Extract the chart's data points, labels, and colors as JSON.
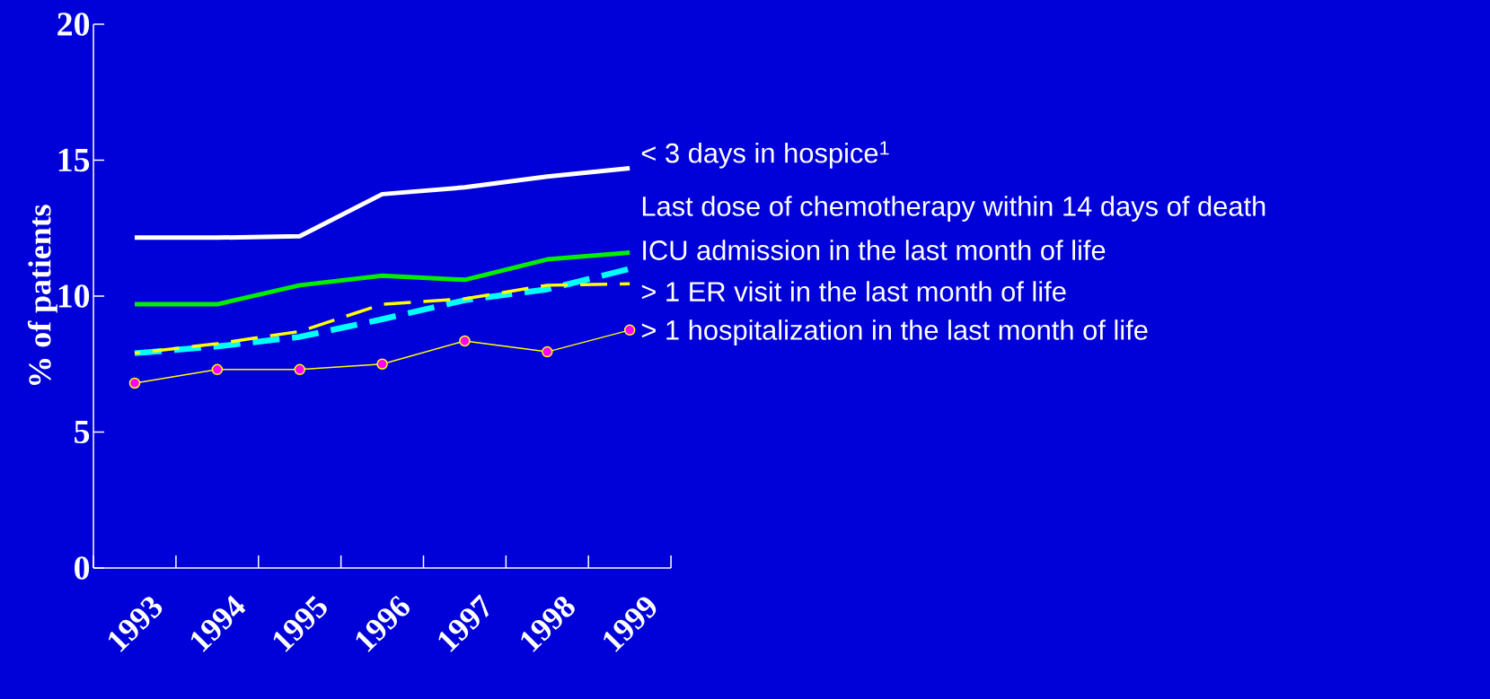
{
  "chart_data": {
    "type": "line",
    "ylabel": "% of patients",
    "categories": [
      "1993",
      "1994",
      "1995",
      "1996",
      "1997",
      "1998",
      "1999"
    ],
    "ylim": [
      0,
      20
    ],
    "yticks": [
      0,
      5,
      10,
      15,
      20
    ],
    "series": [
      {
        "name": "< 3 days in hospice$^{1}$",
        "color": "#ffffff",
        "line_style": "solid",
        "values": [
          12.15,
          12.15,
          12.2,
          13.75,
          14.0,
          14.4,
          14.7
        ]
      },
      {
        "name": "Last dose of chemotherapy within 14 days of death",
        "color": "#00ee00",
        "line_style": "solid",
        "values": [
          9.7,
          9.7,
          10.4,
          10.75,
          10.6,
          11.35,
          11.6
        ]
      },
      {
        "name": "ICU admission in the last month of life",
        "color": "#00ffff",
        "line_style": "dashed",
        "values": [
          7.9,
          8.15,
          8.5,
          9.15,
          9.85,
          10.25,
          11.0
        ]
      },
      {
        "name": "> 1 ER visit in the last month of life",
        "color": "#ffff00",
        "line_style": "dashed",
        "values": [
          7.9,
          8.25,
          8.7,
          9.7,
          9.9,
          10.4,
          10.45
        ]
      },
      {
        "name": "> 1 hospitalization in the last month of life",
        "color": "#ffff00",
        "colors": [
          "#ff00ff",
          "#ff00ff",
          "#ff00ff",
          "#ff00ff",
          "#ff00ff",
          "#ff00ff",
          "#ff00ff"
        ],
        "marker": "circle",
        "line_style": "solid",
        "values": [
          6.8,
          7.3,
          7.3,
          7.5,
          8.35,
          7.95,
          8.75
        ]
      }
    ]
  }
}
